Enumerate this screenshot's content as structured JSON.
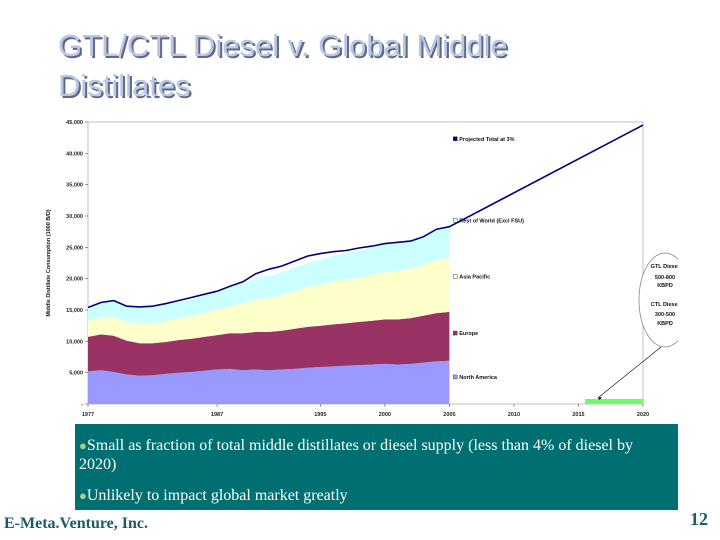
{
  "slide": {
    "title": "GTL/CTL Diesel v. Global Middle\nDistillates",
    "footer_company": "E-Meta.Venture, Inc.",
    "page_number": "12"
  },
  "bullets": [
    {
      "text": "Small as fraction of total middle distillates or diesel supply (less than 4% of diesel by 2020)"
    },
    {
      "text": "Unlikely to impact global market greatly"
    }
  ],
  "colors": {
    "north_america": "#9999ff",
    "europe": "#993366",
    "asia_pacific": "#ffffcc",
    "rest_of_world": "#ccffff",
    "projected_line": "#000080",
    "gtl_ctl_bar": "#66ff66",
    "bullet_box": "#006f71"
  },
  "chart_data": {
    "type": "area",
    "ylabel": "Middle Distillate Consumption (1000 B/D)",
    "ylim": [
      0,
      45000
    ],
    "xlim": [
      1977,
      2020
    ],
    "y_ticks": [
      "45,000",
      "40,000",
      "35,000",
      "30,000",
      "25,000",
      "20,000",
      "15,000",
      "10,000",
      "5,000",
      "-"
    ],
    "y_tick_values": [
      45000,
      40000,
      35000,
      30000,
      25000,
      20000,
      15000,
      10000,
      5000,
      0
    ],
    "x_ticks": [
      "1977",
      "1987",
      "1995",
      "2000",
      "2005",
      "2010",
      "2015",
      "2020"
    ],
    "x_tick_values": [
      1977,
      1987,
      1995,
      2000,
      2005,
      2010,
      2015,
      2020
    ],
    "x": [
      1977,
      1978,
      1979,
      1980,
      1981,
      1982,
      1983,
      1984,
      1985,
      1986,
      1987,
      1988,
      1989,
      1990,
      1991,
      1992,
      1993,
      1994,
      1995,
      1996,
      1997,
      1998,
      1999,
      2000,
      2001,
      2002,
      2003,
      2004,
      2005
    ],
    "stacking": "cumulative",
    "series": [
      {
        "name": "North America",
        "color_key": "north_america",
        "values": [
          5200,
          5400,
          5100,
          4700,
          4500,
          4600,
          4800,
          5000,
          5100,
          5300,
          5500,
          5600,
          5400,
          5500,
          5400,
          5500,
          5600,
          5800,
          5900,
          6000,
          6100,
          6200,
          6300,
          6400,
          6300,
          6400,
          6600,
          6800,
          6900
        ]
      },
      {
        "name": "Europe",
        "color_key": "europe",
        "values": [
          5500,
          5700,
          5800,
          5400,
          5200,
          5100,
          5100,
          5200,
          5300,
          5400,
          5500,
          5700,
          5900,
          6000,
          6100,
          6200,
          6400,
          6500,
          6600,
          6700,
          6800,
          6900,
          7000,
          7100,
          7200,
          7300,
          7500,
          7700,
          7800
        ]
      },
      {
        "name": "Asia Pacific",
        "color_key": "asia_pacific",
        "values": [
          2500,
          2700,
          2900,
          3000,
          3100,
          3200,
          3300,
          3400,
          3600,
          3800,
          4000,
          4300,
          4700,
          5200,
          5400,
          5700,
          6000,
          6300,
          6500,
          6800,
          7000,
          7000,
          7300,
          7500,
          7700,
          7900,
          8100,
          8400,
          8600
        ]
      },
      {
        "name": "Rest of World (Excl FSU)",
        "color_key": "rest_of_world",
        "values": [
          2200,
          2300,
          2500,
          2600,
          2600,
          2600,
          2600,
          2700,
          2800,
          2800,
          2900,
          3000,
          3200,
          3400,
          3500,
          3600,
          3800,
          3900,
          4000,
          4100,
          4200,
          4300,
          4400,
          4500,
          4600,
          4700,
          4800,
          4900,
          5000
        ]
      }
    ],
    "total_line": {
      "name": "Projected Total at 3% growth",
      "color_key": "projected_line",
      "x": [
        1977,
        1978,
        1979,
        1980,
        1981,
        1982,
        1983,
        1984,
        1985,
        1986,
        1987,
        1988,
        1989,
        1990,
        1991,
        1992,
        1993,
        1994,
        1995,
        1996,
        1997,
        1998,
        1999,
        2000,
        2001,
        2002,
        2003,
        2004,
        2005,
        2020
      ],
      "values": [
        15400,
        16200,
        16500,
        15600,
        15500,
        15600,
        16000,
        16500,
        17000,
        17500,
        18000,
        18800,
        19500,
        20800,
        21500,
        22000,
        22800,
        23600,
        24000,
        24300,
        24500,
        24900,
        25200,
        25600,
        25800,
        26000,
        26700,
        27900,
        28300,
        44500
      ]
    },
    "gtl_ctl_bar": {
      "x_start": 2015.5,
      "x_end": 2020,
      "value": 800
    },
    "legend": [
      {
        "label": "Projected Total at 3% growth",
        "color_key": "projected_line"
      },
      {
        "label": "Rest of World (Excl FSU)",
        "color_key": "rest_of_world"
      },
      {
        "label": "Asia Pacific",
        "color_key": "asia_pacific"
      },
      {
        "label": "Europe",
        "color_key": "europe"
      },
      {
        "label": "North America",
        "color_key": "north_america"
      }
    ],
    "callout": {
      "lines": [
        "GTL Diesel",
        "500-800",
        "KBPD",
        "CTL Diesel",
        "300-500",
        "KBPD"
      ]
    }
  }
}
